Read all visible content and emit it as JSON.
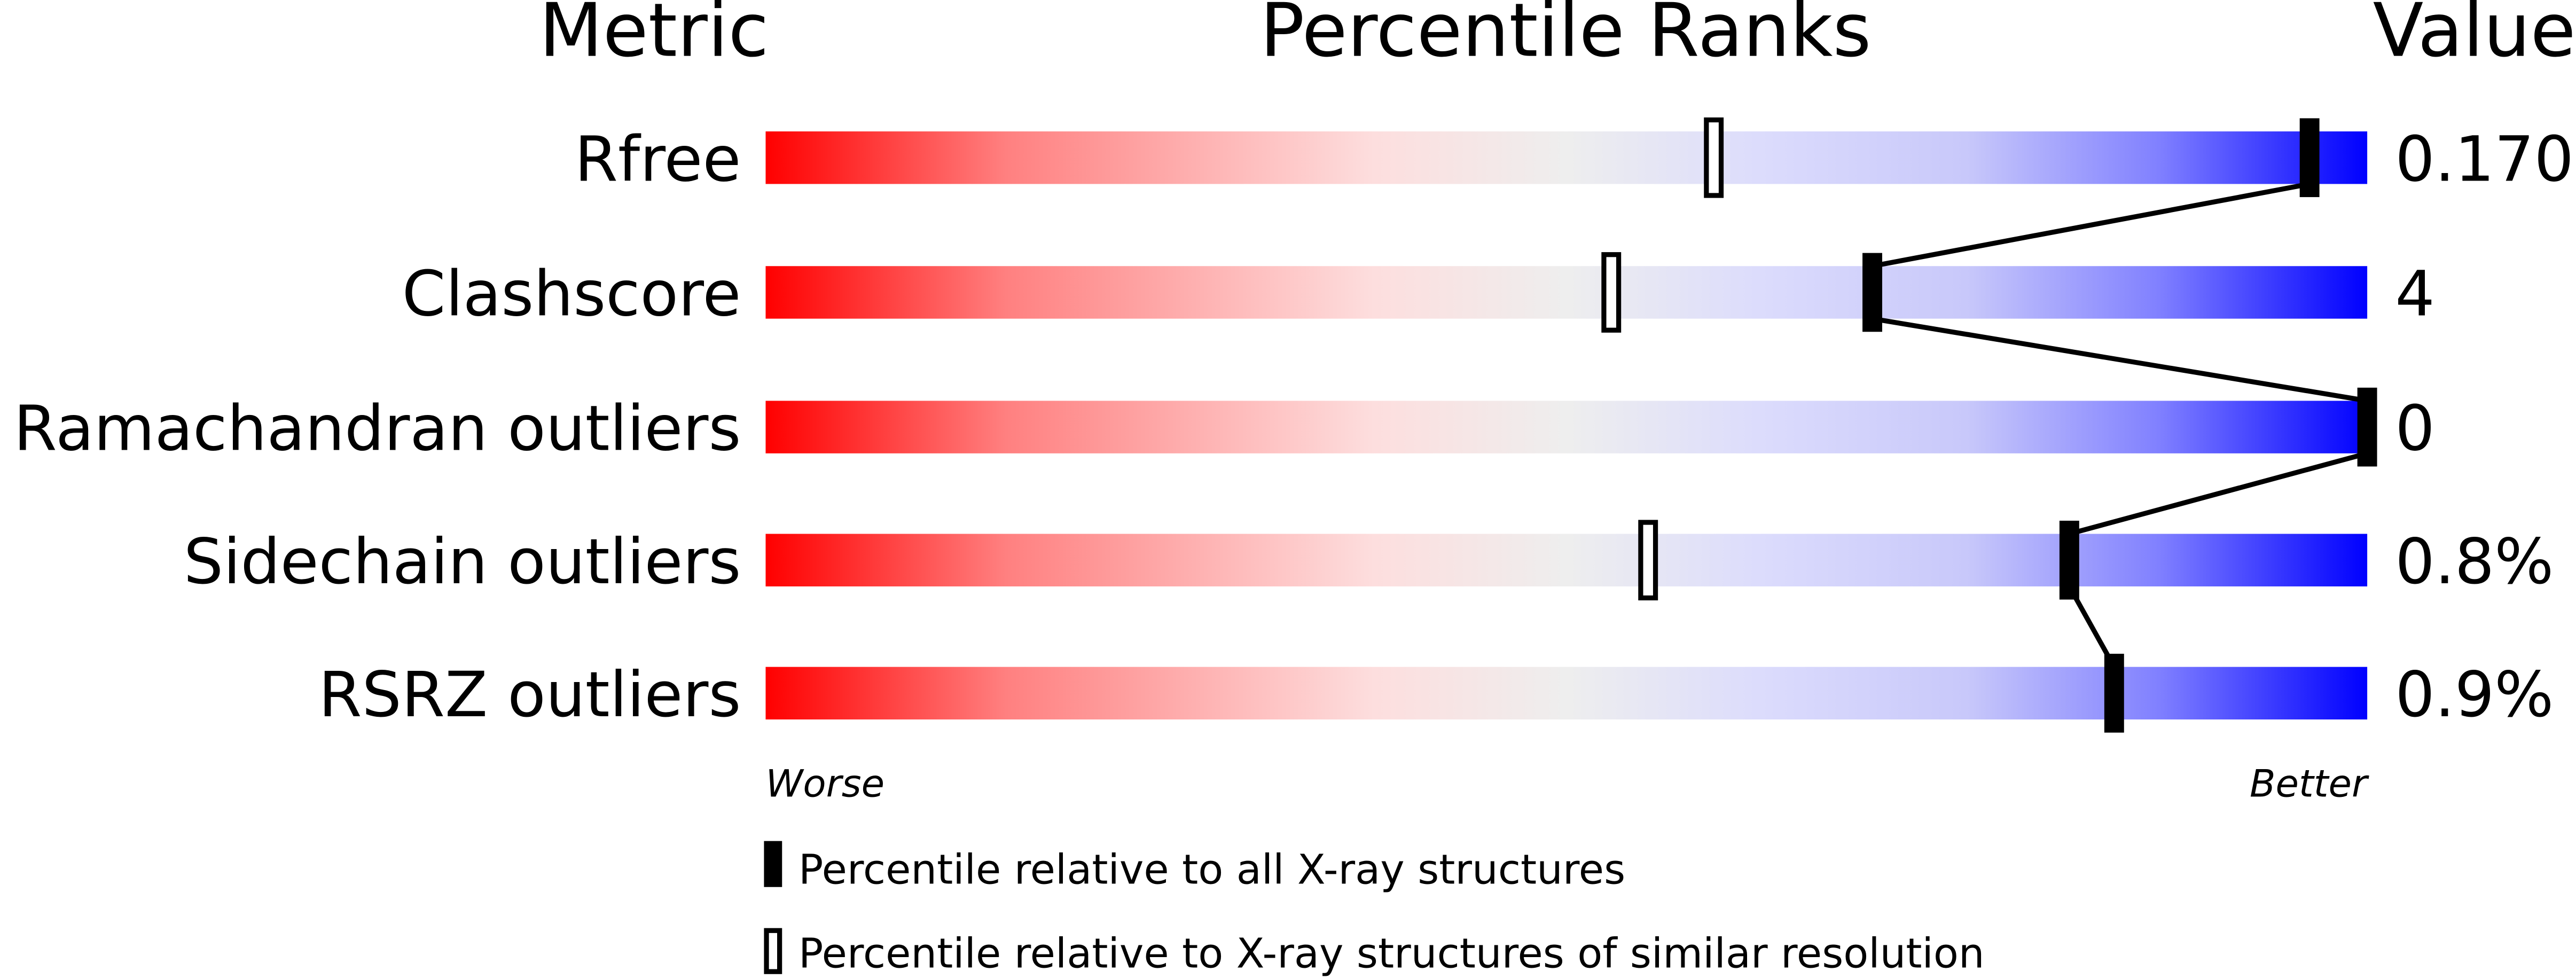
{
  "chart_data": {
    "type": "bar",
    "title": "",
    "headers": {
      "metric": "Metric",
      "percentile": "Percentile Ranks",
      "value": "Value"
    },
    "axis": {
      "left": "Worse",
      "right": "Better",
      "range": [
        0,
        100
      ]
    },
    "gradient_colors": [
      "#ff0000",
      "#ff8080",
      "#fddede",
      "#eeeeee",
      "#dcdcfc",
      "#8080ff",
      "#0000ff"
    ],
    "rows": [
      {
        "metric": "Rfree",
        "value": "0.170",
        "percentile_all": 96.4,
        "percentile_similar": 59.2
      },
      {
        "metric": "Clashscore",
        "value": "4",
        "percentile_all": 69.1,
        "percentile_similar": 52.8
      },
      {
        "metric": "Ramachandran outliers",
        "value": "0",
        "percentile_all": 100,
        "percentile_similar": null
      },
      {
        "metric": "Sidechain outliers",
        "value": "0.8%",
        "percentile_all": 81.4,
        "percentile_similar": 55.1
      },
      {
        "metric": "RSRZ outliers",
        "value": "0.9%",
        "percentile_all": 84.2,
        "percentile_similar": null
      }
    ],
    "legend": [
      {
        "marker": "filled",
        "label": "Percentile relative to all X-ray structures"
      },
      {
        "marker": "open",
        "label": "Percentile relative to X-ray structures of similar resolution"
      }
    ]
  }
}
